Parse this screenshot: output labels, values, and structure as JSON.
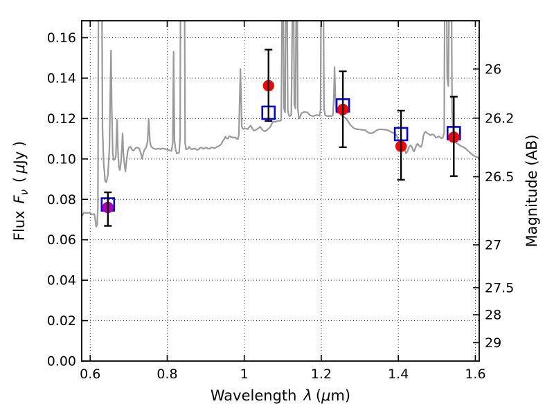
{
  "chart_data": {
    "type": "line",
    "title": "",
    "xlabel": "Wavelength λ (μm)",
    "ylabel": "Flux Fν ( μJy )",
    "y2label": "Magnitude (AB)",
    "xlabel_parts": {
      "word": "Wavelength",
      "lambda": "λ",
      "open": "(",
      "mu": "μ",
      "unit": "m)"
    },
    "ylabel_parts": {
      "word": "Flux",
      "f": "F",
      "nu": "ν",
      "open": "(",
      "mu": "μ",
      "unit": "Jy )"
    },
    "xlim": [
      0.578,
      1.61
    ],
    "ylim": [
      0,
      0.1684
    ],
    "grid": "dotted",
    "legend": "none",
    "x_ticks": [
      {
        "v": 0.6,
        "label": "0.6"
      },
      {
        "v": 0.8,
        "label": "0.8"
      },
      {
        "v": 1.0,
        "label": "1"
      },
      {
        "v": 1.2,
        "label": "1.2"
      },
      {
        "v": 1.4,
        "label": "1.4"
      },
      {
        "v": 1.6,
        "label": "1.6"
      }
    ],
    "y_ticks": [
      {
        "v": 0.0,
        "label": "0.00"
      },
      {
        "v": 0.02,
        "label": "0.02"
      },
      {
        "v": 0.04,
        "label": "0.04"
      },
      {
        "v": 0.06,
        "label": "0.06"
      },
      {
        "v": 0.08,
        "label": "0.08"
      },
      {
        "v": 0.1,
        "label": "0.10"
      },
      {
        "v": 0.12,
        "label": "0.12"
      },
      {
        "v": 0.14,
        "label": "0.14"
      },
      {
        "v": 0.16,
        "label": "0.16"
      }
    ],
    "y2_ticks": [
      {
        "label": "26",
        "flux": 0.1445
      },
      {
        "label": "26.2",
        "flux": 0.1202
      },
      {
        "label": "26.5",
        "flux": 0.0912
      },
      {
        "label": "27",
        "flux": 0.0575
      },
      {
        "label": "27.5",
        "flux": 0.0363
      },
      {
        "label": "28",
        "flux": 0.0229
      },
      {
        "label": "29",
        "flux": 0.0091
      }
    ],
    "colors": {
      "spectrum": "#9a9a9a",
      "measured_circle": "#ff0000",
      "measured_circle_first": "#b000b0",
      "model_square": "#0000ee",
      "errorbar": "#000000",
      "frame": "#000000",
      "grid": "#3a3a3a"
    },
    "photometry_measured": [
      {
        "x": 0.646,
        "y": 0.076,
        "err_lo": 0.0669,
        "err_hi": 0.0835,
        "color": "#b000b0"
      },
      {
        "x": 1.063,
        "y": 0.1363,
        "err_lo": 0.1188,
        "err_hi": 0.1541,
        "color": "#ff0000"
      },
      {
        "x": 1.256,
        "y": 0.1245,
        "err_lo": 0.1058,
        "err_hi": 0.1434,
        "color": "#ff0000"
      },
      {
        "x": 1.407,
        "y": 0.1063,
        "err_lo": 0.0897,
        "err_hi": 0.1239,
        "color": "#ff0000"
      },
      {
        "x": 1.544,
        "y": 0.1108,
        "err_lo": 0.0915,
        "err_hi": 0.1308,
        "color": "#ff0000"
      }
    ],
    "photometry_model_squares": [
      [
        0.646,
        0.0775
      ],
      [
        1.063,
        0.1229
      ],
      [
        1.256,
        0.1265
      ],
      [
        1.407,
        0.1123
      ],
      [
        1.544,
        0.1128
      ]
    ],
    "spectrum": [
      [
        0.578,
        0.0715
      ],
      [
        0.584,
        0.0735
      ],
      [
        0.592,
        0.0732
      ],
      [
        0.6,
        0.0735
      ],
      [
        0.603,
        0.0726
      ],
      [
        0.611,
        0.0727
      ],
      [
        0.613,
        0.07
      ],
      [
        0.6155,
        0.0665
      ],
      [
        0.618,
        0.0672
      ],
      [
        0.62,
        0.076
      ],
      [
        0.6215,
        0.18
      ],
      [
        0.6305,
        0.18
      ],
      [
        0.632,
        0.115
      ],
      [
        0.635,
        0.098
      ],
      [
        0.639,
        0.089
      ],
      [
        0.642,
        0.0885
      ],
      [
        0.646,
        0.092
      ],
      [
        0.65,
        0.105
      ],
      [
        0.6525,
        0.135
      ],
      [
        0.654,
        0.1537
      ],
      [
        0.656,
        0.125
      ],
      [
        0.6585,
        0.103
      ],
      [
        0.661,
        0.0995
      ],
      [
        0.664,
        0.1
      ],
      [
        0.6665,
        0.101
      ],
      [
        0.669,
        0.115
      ],
      [
        0.67,
        0.1195
      ],
      [
        0.672,
        0.104
      ],
      [
        0.6745,
        0.096
      ],
      [
        0.677,
        0.0945
      ],
      [
        0.68,
        0.0985
      ],
      [
        0.6825,
        0.106
      ],
      [
        0.684,
        0.1127
      ],
      [
        0.686,
        0.103
      ],
      [
        0.689,
        0.0975
      ],
      [
        0.6915,
        0.0938
      ],
      [
        0.694,
        0.0985
      ],
      [
        0.6975,
        0.104
      ],
      [
        0.701,
        0.1057
      ],
      [
        0.705,
        0.106
      ],
      [
        0.709,
        0.1045
      ],
      [
        0.713,
        0.1042
      ],
      [
        0.718,
        0.1055
      ],
      [
        0.723,
        0.1057
      ],
      [
        0.728,
        0.105
      ],
      [
        0.7325,
        0.1022
      ],
      [
        0.735,
        0.1
      ],
      [
        0.738,
        0.103
      ],
      [
        0.7415,
        0.1048
      ],
      [
        0.745,
        0.1055
      ],
      [
        0.749,
        0.1085
      ],
      [
        0.752,
        0.1197
      ],
      [
        0.755,
        0.109
      ],
      [
        0.758,
        0.1062
      ],
      [
        0.762,
        0.1055
      ],
      [
        0.767,
        0.105
      ],
      [
        0.772,
        0.1048
      ],
      [
        0.777,
        0.1052
      ],
      [
        0.782,
        0.1048
      ],
      [
        0.787,
        0.1052
      ],
      [
        0.792,
        0.105
      ],
      [
        0.797,
        0.1048
      ],
      [
        0.802,
        0.1045
      ],
      [
        0.807,
        0.1042
      ],
      [
        0.811,
        0.104
      ],
      [
        0.8145,
        0.108
      ],
      [
        0.8165,
        0.153
      ],
      [
        0.819,
        0.109
      ],
      [
        0.822,
        0.1045
      ],
      [
        0.825,
        0.1027
      ],
      [
        0.828,
        0.103
      ],
      [
        0.831,
        0.1032
      ],
      [
        0.8335,
        0.11
      ],
      [
        0.8345,
        0.18
      ],
      [
        0.845,
        0.18
      ],
      [
        0.8465,
        0.108
      ],
      [
        0.849,
        0.1047
      ],
      [
        0.853,
        0.105
      ],
      [
        0.857,
        0.106
      ],
      [
        0.861,
        0.105
      ],
      [
        0.865,
        0.1047
      ],
      [
        0.869,
        0.1052
      ],
      [
        0.873,
        0.105
      ],
      [
        0.877,
        0.1045
      ],
      [
        0.881,
        0.1047
      ],
      [
        0.885,
        0.1055
      ],
      [
        0.889,
        0.1057
      ],
      [
        0.893,
        0.105
      ],
      [
        0.897,
        0.1053
      ],
      [
        0.901,
        0.1057
      ],
      [
        0.905,
        0.1052
      ],
      [
        0.909,
        0.105
      ],
      [
        0.913,
        0.1055
      ],
      [
        0.917,
        0.1058
      ],
      [
        0.921,
        0.1053
      ],
      [
        0.925,
        0.1055
      ],
      [
        0.929,
        0.106
      ],
      [
        0.933,
        0.1063
      ],
      [
        0.937,
        0.1068
      ],
      [
        0.941,
        0.1075
      ],
      [
        0.9445,
        0.109
      ],
      [
        0.948,
        0.1098
      ],
      [
        0.951,
        0.111
      ],
      [
        0.954,
        0.1103
      ],
      [
        0.9575,
        0.11
      ],
      [
        0.961,
        0.1113
      ],
      [
        0.9645,
        0.111
      ],
      [
        0.968,
        0.1108
      ],
      [
        0.972,
        0.1105
      ],
      [
        0.976,
        0.1107
      ],
      [
        0.98,
        0.11
      ],
      [
        0.9835,
        0.1098
      ],
      [
        0.986,
        0.112
      ],
      [
        0.99,
        0.1445
      ],
      [
        0.9935,
        0.116
      ],
      [
        0.997,
        0.1148
      ],
      [
        1.001,
        0.1152
      ],
      [
        1.005,
        0.115
      ],
      [
        1.009,
        0.1147
      ],
      [
        1.013,
        0.1158
      ],
      [
        1.017,
        0.1165
      ],
      [
        1.021,
        0.115
      ],
      [
        1.025,
        0.114
      ],
      [
        1.029,
        0.1143
      ],
      [
        1.033,
        0.1147
      ],
      [
        1.037,
        0.1152
      ],
      [
        1.041,
        0.116
      ],
      [
        1.045,
        0.115
      ],
      [
        1.049,
        0.114
      ],
      [
        1.053,
        0.1137
      ],
      [
        1.057,
        0.114
      ],
      [
        1.061,
        0.1147
      ],
      [
        1.065,
        0.1153
      ],
      [
        1.069,
        0.1163
      ],
      [
        1.073,
        0.118
      ],
      [
        1.077,
        0.1185
      ],
      [
        1.081,
        0.1183
      ],
      [
        1.085,
        0.1187
      ],
      [
        1.089,
        0.119
      ],
      [
        1.093,
        0.1188
      ],
      [
        1.096,
        0.1192
      ],
      [
        1.0985,
        0.18
      ],
      [
        1.101,
        0.18
      ],
      [
        1.103,
        0.125
      ],
      [
        1.106,
        0.123
      ],
      [
        1.108,
        0.18
      ],
      [
        1.111,
        0.18
      ],
      [
        1.113,
        0.124
      ],
      [
        1.116,
        0.1215
      ],
      [
        1.119,
        0.1212
      ],
      [
        1.122,
        0.1218
      ],
      [
        1.1255,
        0.18
      ],
      [
        1.128,
        0.18
      ],
      [
        1.13,
        0.127
      ],
      [
        1.133,
        0.125
      ],
      [
        1.135,
        0.18
      ],
      [
        1.1375,
        0.18
      ],
      [
        1.139,
        0.125
      ],
      [
        1.142,
        0.12
      ],
      [
        1.145,
        0.121
      ],
      [
        1.148,
        0.1225
      ],
      [
        1.152,
        0.123
      ],
      [
        1.156,
        0.1233
      ],
      [
        1.16,
        0.1232
      ],
      [
        1.164,
        0.123
      ],
      [
        1.168,
        0.1222
      ],
      [
        1.172,
        0.1215
      ],
      [
        1.176,
        0.1213
      ],
      [
        1.18,
        0.1212
      ],
      [
        1.184,
        0.1215
      ],
      [
        1.188,
        0.1218
      ],
      [
        1.192,
        0.1216
      ],
      [
        1.195,
        0.1213
      ],
      [
        1.198,
        0.124
      ],
      [
        1.1995,
        0.18
      ],
      [
        1.2055,
        0.18
      ],
      [
        1.207,
        0.125
      ],
      [
        1.21,
        0.1216
      ],
      [
        1.214,
        0.1213
      ],
      [
        1.218,
        0.1212
      ],
      [
        1.222,
        0.1213
      ],
      [
        1.226,
        0.1212
      ],
      [
        1.23,
        0.1215
      ],
      [
        1.2325,
        0.13
      ],
      [
        1.2345,
        0.1455
      ],
      [
        1.237,
        0.128
      ],
      [
        1.239,
        0.1232
      ],
      [
        1.243,
        0.1228
      ],
      [
        1.247,
        0.1226
      ],
      [
        1.251,
        0.1218
      ],
      [
        1.255,
        0.1212
      ],
      [
        1.259,
        0.1207
      ],
      [
        1.263,
        0.1203
      ],
      [
        1.267,
        0.1193
      ],
      [
        1.271,
        0.1183
      ],
      [
        1.275,
        0.117
      ],
      [
        1.279,
        0.1162
      ],
      [
        1.283,
        0.1155
      ],
      [
        1.287,
        0.115
      ],
      [
        1.291,
        0.1148
      ],
      [
        1.295,
        0.1147
      ],
      [
        1.3,
        0.1146
      ],
      [
        1.305,
        0.1145
      ],
      [
        1.31,
        0.1143
      ],
      [
        1.315,
        0.1142
      ],
      [
        1.32,
        0.1133
      ],
      [
        1.325,
        0.1128
      ],
      [
        1.33,
        0.1127
      ],
      [
        1.335,
        0.113
      ],
      [
        1.34,
        0.1137
      ],
      [
        1.345,
        0.1143
      ],
      [
        1.35,
        0.1146
      ],
      [
        1.355,
        0.1147
      ],
      [
        1.36,
        0.1146
      ],
      [
        1.365,
        0.1145
      ],
      [
        1.37,
        0.1144
      ],
      [
        1.375,
        0.114
      ],
      [
        1.38,
        0.1135
      ],
      [
        1.385,
        0.113
      ],
      [
        1.39,
        0.1126
      ],
      [
        1.394,
        0.112
      ],
      [
        1.397,
        0.111
      ],
      [
        1.4,
        0.1095
      ],
      [
        1.403,
        0.1078
      ],
      [
        1.406,
        0.1062
      ],
      [
        1.409,
        0.1058
      ],
      [
        1.412,
        0.1062
      ],
      [
        1.4145,
        0.106
      ],
      [
        1.417,
        0.1042
      ],
      [
        1.42,
        0.1028
      ],
      [
        1.423,
        0.1035
      ],
      [
        1.426,
        0.105
      ],
      [
        1.429,
        0.1062
      ],
      [
        1.432,
        0.1068
      ],
      [
        1.435,
        0.106
      ],
      [
        1.438,
        0.1045
      ],
      [
        1.441,
        0.1037
      ],
      [
        1.444,
        0.1052
      ],
      [
        1.447,
        0.1068
      ],
      [
        1.45,
        0.1075
      ],
      [
        1.453,
        0.1068
      ],
      [
        1.456,
        0.1062
      ],
      [
        1.459,
        0.106
      ],
      [
        1.462,
        0.1075
      ],
      [
        1.465,
        0.1115
      ],
      [
        1.468,
        0.113
      ],
      [
        1.471,
        0.1135
      ],
      [
        1.474,
        0.1128
      ],
      [
        1.477,
        0.1125
      ],
      [
        1.48,
        0.1122
      ],
      [
        1.483,
        0.1118
      ],
      [
        1.486,
        0.112
      ],
      [
        1.489,
        0.1122
      ],
      [
        1.492,
        0.112
      ],
      [
        1.495,
        0.1112
      ],
      [
        1.498,
        0.1105
      ],
      [
        1.501,
        0.1108
      ],
      [
        1.504,
        0.1112
      ],
      [
        1.507,
        0.111
      ],
      [
        1.51,
        0.1105
      ],
      [
        1.513,
        0.1102
      ],
      [
        1.516,
        0.1108
      ],
      [
        1.519,
        0.113
      ],
      [
        1.5205,
        0.18
      ],
      [
        1.5255,
        0.18
      ],
      [
        1.527,
        0.14
      ],
      [
        1.53,
        0.136
      ],
      [
        1.532,
        0.18
      ],
      [
        1.538,
        0.18
      ],
      [
        1.5395,
        0.124
      ],
      [
        1.542,
        0.113
      ],
      [
        1.545,
        0.109
      ],
      [
        1.548,
        0.1082
      ],
      [
        1.552,
        0.1078
      ],
      [
        1.556,
        0.1072
      ],
      [
        1.56,
        0.1068
      ],
      [
        1.564,
        0.1062
      ],
      [
        1.568,
        0.106
      ],
      [
        1.572,
        0.1055
      ],
      [
        1.576,
        0.105
      ],
      [
        1.58,
        0.1042
      ],
      [
        1.584,
        0.1035
      ],
      [
        1.588,
        0.1028
      ],
      [
        1.592,
        0.1022
      ],
      [
        1.596,
        0.1016
      ],
      [
        1.6,
        0.1012
      ],
      [
        1.605,
        0.1008
      ],
      [
        1.61,
        0.1005
      ]
    ]
  }
}
